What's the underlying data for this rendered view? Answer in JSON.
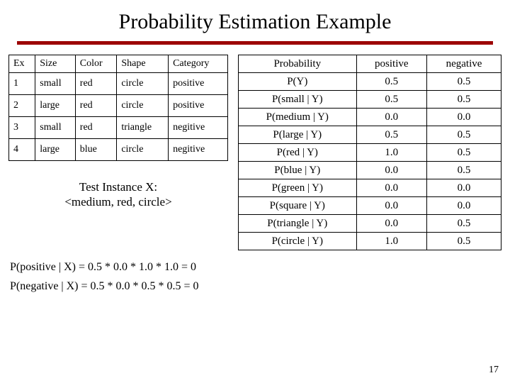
{
  "title": "Probability Estimation Example",
  "underline_color": "#9c0000",
  "background_color": "#ffffff",
  "text_color": "#000000",
  "slide_number": "17",
  "left_table": {
    "type": "table",
    "border_color": "#000000",
    "columns": [
      "Ex",
      "Size",
      "Color",
      "Shape",
      "Category"
    ],
    "rows": [
      [
        "1",
        "small",
        "red",
        "circle",
        "positive"
      ],
      [
        "2",
        "large",
        "red",
        "circle",
        "positive"
      ],
      [
        "3",
        "small",
        "red",
        "triangle",
        "negitive"
      ],
      [
        "4",
        "large",
        "blue",
        "circle",
        "negitive"
      ]
    ]
  },
  "test_instance": {
    "line1": "Test Instance X:",
    "line2": "<medium, red, circle>"
  },
  "right_table": {
    "type": "table",
    "border_color": "#000000",
    "columns": [
      "Probability",
      "positive",
      "negative"
    ],
    "rows": [
      [
        "P(Y)",
        "0.5",
        "0.5"
      ],
      [
        "P(small | Y)",
        "0.5",
        "0.5"
      ],
      [
        "P(medium | Y)",
        "0.0",
        "0.0"
      ],
      [
        "P(large | Y)",
        "0.5",
        "0.5"
      ],
      [
        "P(red | Y)",
        "1.0",
        "0.5"
      ],
      [
        "P(blue | Y)",
        "0.0",
        "0.5"
      ],
      [
        "P(green | Y)",
        "0.0",
        "0.0"
      ],
      [
        "P(square | Y)",
        "0.0",
        "0.0"
      ],
      [
        "P(triangle | Y)",
        "0.0",
        "0.5"
      ],
      [
        "P(circle | Y)",
        "1.0",
        "0.5"
      ]
    ]
  },
  "equations": {
    "line1": "P(positive | X) = 0.5 * 0.0 * 1.0 * 1.0 = 0",
    "line2": "P(negative | X) = 0.5 * 0.0 * 0.5 * 0.5 = 0"
  }
}
